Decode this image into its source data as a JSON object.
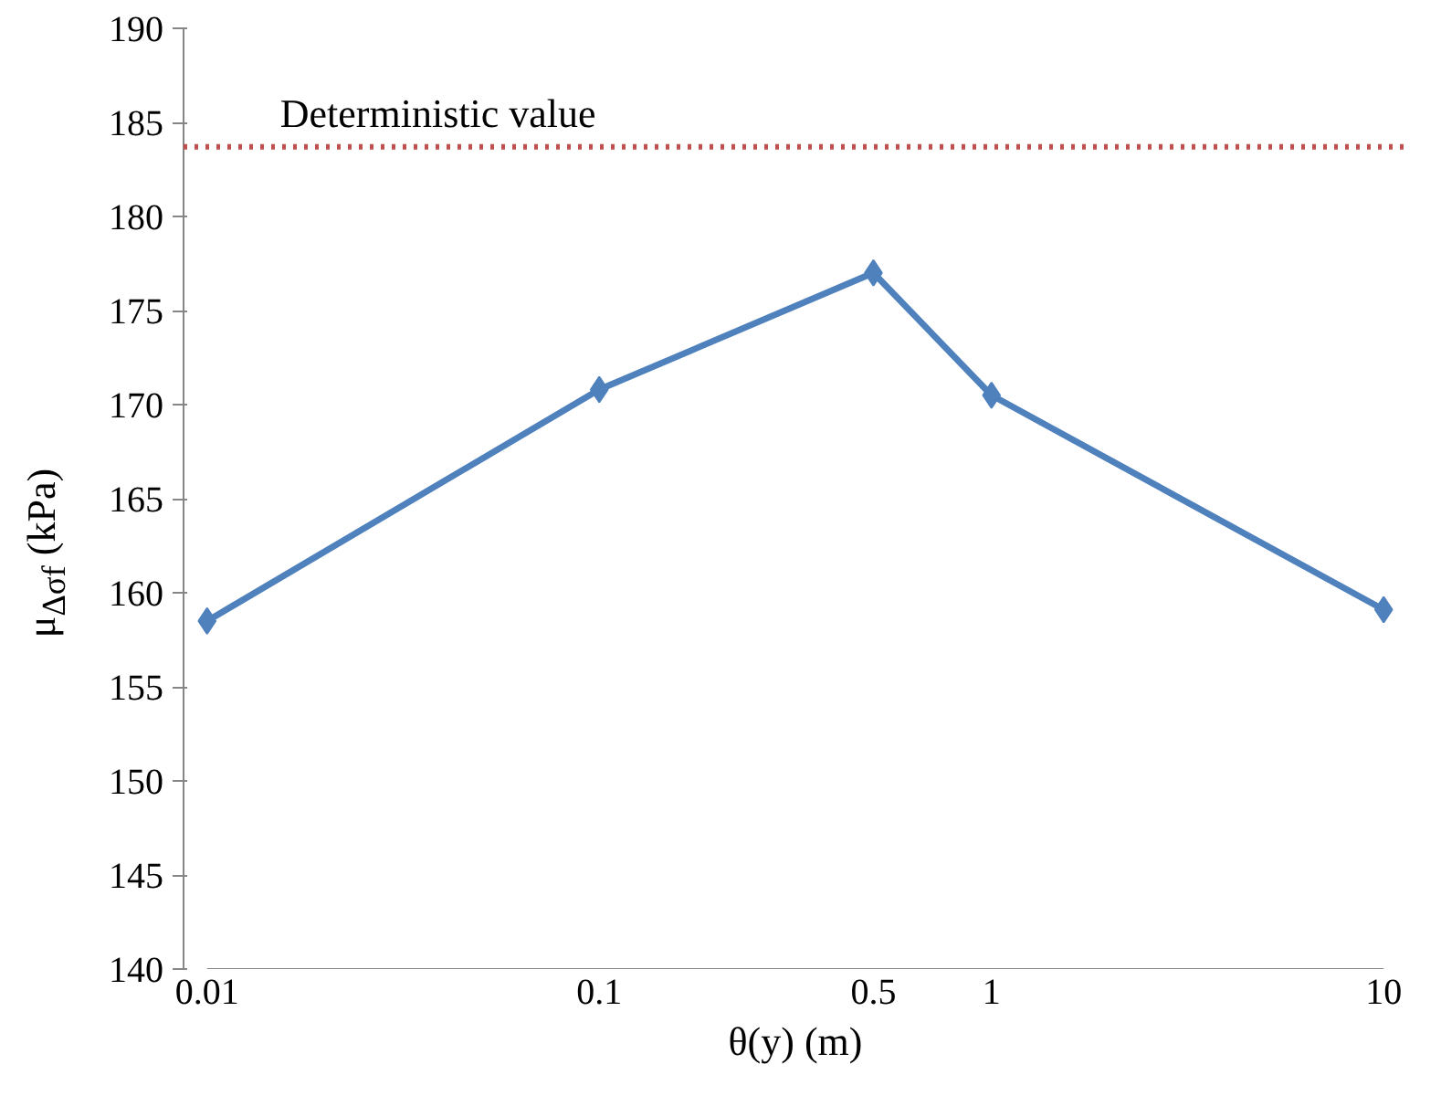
{
  "chart_data": {
    "type": "line",
    "xlabel": "θ(y) (m)",
    "ylabel": "μ$_{Δσf}$ (kPa)",
    "x": [
      0.01,
      0.1,
      0.5,
      1,
      10
    ],
    "series": [
      {
        "color": "#4f81bd",
        "values": [
          158.5,
          170.8,
          177.0,
          170.5,
          159.1
        ]
      }
    ],
    "log": "x",
    "xlim": [
      0.01,
      10
    ],
    "ylim": [
      140,
      190
    ],
    "xticks": [
      0.01,
      0.1,
      0.5,
      1,
      10
    ],
    "yticks": [
      140,
      145,
      150,
      155,
      160,
      165,
      170,
      175,
      180,
      185,
      190
    ],
    "ref_lines": [
      {
        "axis": "y",
        "value": 183.7,
        "label": "Deterministic value",
        "color": "#c0504d",
        "line_style": "dotted"
      }
    ],
    "grid": false,
    "marker": "diamond",
    "line_style": "solid"
  }
}
